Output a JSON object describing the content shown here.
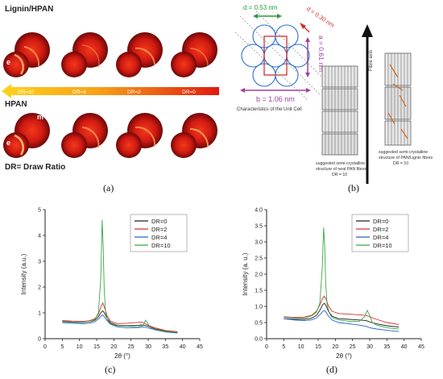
{
  "panel_a": {
    "label": "(a)",
    "row_top_label": "Lignin/HPAN",
    "row_bottom_label": "HPAN",
    "footer_label": "DR= Draw Ratio",
    "m_label": "m",
    "e_label": "e",
    "dr_labels": [
      "DR=10",
      "DR=4",
      "DR=2",
      "DR=0"
    ]
  },
  "panel_b": {
    "label": "(b)",
    "d_green": "d = 0.53 nm",
    "d_red": "d = 0.30 nm",
    "a_label": "a = 0.61 nm",
    "b_label": "b = 1.06 nm",
    "cell_caption": "Characteristics of the Unit Cell",
    "fibre_axis": "Fibre axis",
    "caption_left": [
      "suggested semi-crystalline",
      "structure of neat PAN fibres",
      "DR = 10"
    ],
    "caption_right": [
      "suggested semi-crystalline",
      "structure of PAN/Lignin fibres",
      "DR = 10"
    ],
    "colors": {
      "green": "#2a9a3a",
      "red": "#d23030",
      "magenta": "#a040a0",
      "blue": "#2a6fd0"
    }
  },
  "chart_data": [
    {
      "type": "line",
      "panel": "(c)",
      "title": "",
      "xlabel": "2θ (°)",
      "ylabel": "Intensity (a.u.)",
      "xlim": [
        0,
        45
      ],
      "ylim": [
        0,
        5
      ],
      "xticks": [
        "0",
        "5",
        "10",
        "15",
        "20",
        "25",
        "30",
        "35",
        "40",
        "45"
      ],
      "yticks": [
        "0",
        "1",
        "2",
        "3",
        "4",
        "5"
      ],
      "legend_position": "top-right",
      "series": [
        {
          "name": "DR=0",
          "color": "#222222",
          "x": [
            5,
            8,
            11,
            13,
            14.5,
            15.5,
            16.3,
            16.8,
            17.3,
            18,
            19,
            21,
            24,
            27,
            28,
            29,
            30,
            32,
            35,
            38.5
          ],
          "y": [
            0.68,
            0.64,
            0.63,
            0.65,
            0.72,
            0.85,
            1.02,
            1.08,
            0.98,
            0.8,
            0.62,
            0.52,
            0.5,
            0.52,
            0.53,
            0.52,
            0.48,
            0.38,
            0.3,
            0.25
          ]
        },
        {
          "name": "DR=2",
          "color": "#d83030",
          "x": [
            5,
            8,
            11,
            13,
            14.5,
            15.5,
            16.3,
            16.8,
            17.3,
            18,
            19,
            21,
            24,
            27,
            28,
            29,
            30,
            32,
            35,
            38.5
          ],
          "y": [
            0.7,
            0.68,
            0.67,
            0.7,
            0.78,
            0.95,
            1.25,
            1.38,
            1.2,
            0.9,
            0.68,
            0.58,
            0.6,
            0.63,
            0.64,
            0.6,
            0.52,
            0.42,
            0.32,
            0.27
          ]
        },
        {
          "name": "DR=4",
          "color": "#2a5fd0",
          "x": [
            5,
            8,
            11,
            13,
            14.5,
            15.5,
            16.3,
            16.8,
            17.3,
            18,
            19,
            21,
            24,
            27,
            28,
            29,
            30,
            32,
            35,
            38.5
          ],
          "y": [
            0.62,
            0.6,
            0.58,
            0.6,
            0.66,
            0.76,
            0.88,
            0.92,
            0.84,
            0.7,
            0.56,
            0.46,
            0.42,
            0.43,
            0.44,
            0.45,
            0.42,
            0.34,
            0.26,
            0.22
          ]
        },
        {
          "name": "DR=10",
          "color": "#3aa84a",
          "x": [
            5,
            8,
            11,
            13,
            14.5,
            15.5,
            16.2,
            16.6,
            16.9,
            17.2,
            17.6,
            18.3,
            19,
            21,
            24,
            27,
            28.5,
            29.2,
            29.8,
            30.5,
            32,
            35,
            38.5
          ],
          "y": [
            0.66,
            0.63,
            0.62,
            0.66,
            0.75,
            1.0,
            2.3,
            4.6,
            3.6,
            1.9,
            1.0,
            0.7,
            0.58,
            0.5,
            0.48,
            0.46,
            0.5,
            0.72,
            0.62,
            0.44,
            0.36,
            0.28,
            0.24
          ]
        }
      ]
    },
    {
      "type": "line",
      "panel": "(d)",
      "title": "",
      "xlabel": "2θ (°)",
      "ylabel": "Intensity (a. u.)",
      "xlim": [
        0,
        45
      ],
      "ylim": [
        0,
        4
      ],
      "xticks": [
        "0",
        "5",
        "10",
        "15",
        "20",
        "25",
        "30",
        "35",
        "40",
        "45"
      ],
      "yticks": [
        "0.0",
        "0.5",
        "1.0",
        "1.5",
        "2.0",
        "2.5",
        "3.0",
        "3.5",
        "4.0"
      ],
      "legend_position": "top-right",
      "series": [
        {
          "name": "DR=0",
          "color": "#222222",
          "x": [
            5,
            8,
            11,
            13,
            14.5,
            15.5,
            16.3,
            16.8,
            17.3,
            18,
            19,
            21,
            24,
            27,
            29,
            30,
            32,
            35,
            38.5
          ],
          "y": [
            0.62,
            0.6,
            0.6,
            0.63,
            0.72,
            0.88,
            1.05,
            1.1,
            1.02,
            0.85,
            0.7,
            0.62,
            0.6,
            0.58,
            0.56,
            0.52,
            0.46,
            0.4,
            0.36
          ]
        },
        {
          "name": "DR=2",
          "color": "#d83030",
          "x": [
            5,
            8,
            11,
            13,
            14.5,
            15.5,
            16.3,
            16.8,
            17.3,
            18,
            19,
            21,
            24,
            27,
            29,
            30,
            32,
            35,
            38.5
          ],
          "y": [
            0.68,
            0.66,
            0.67,
            0.72,
            0.85,
            1.05,
            1.25,
            1.32,
            1.22,
            1.02,
            0.85,
            0.78,
            0.76,
            0.74,
            0.72,
            0.68,
            0.6,
            0.5,
            0.44
          ]
        },
        {
          "name": "DR=4",
          "color": "#2a5fd0",
          "x": [
            5,
            8,
            11,
            13,
            14.5,
            15.5,
            16.3,
            16.8,
            17.3,
            18,
            19,
            21,
            24,
            27,
            29,
            30,
            32,
            35,
            38.5
          ],
          "y": [
            0.62,
            0.58,
            0.56,
            0.58,
            0.64,
            0.74,
            0.84,
            0.88,
            0.82,
            0.7,
            0.58,
            0.5,
            0.46,
            0.42,
            0.38,
            0.34,
            0.3,
            0.26,
            0.22
          ]
        },
        {
          "name": "DR=10",
          "color": "#3aa84a",
          "x": [
            5,
            8,
            11,
            13,
            14.5,
            15.5,
            16.2,
            16.6,
            16.9,
            17.2,
            17.6,
            18.3,
            19,
            21,
            24,
            27,
            28.5,
            29.3,
            30,
            30.8,
            32,
            35,
            38.5
          ],
          "y": [
            0.66,
            0.64,
            0.64,
            0.7,
            0.82,
            1.1,
            2.2,
            3.45,
            2.9,
            1.7,
            1.05,
            0.78,
            0.66,
            0.58,
            0.54,
            0.54,
            0.68,
            0.88,
            0.72,
            0.5,
            0.42,
            0.34,
            0.3
          ]
        }
      ]
    }
  ]
}
